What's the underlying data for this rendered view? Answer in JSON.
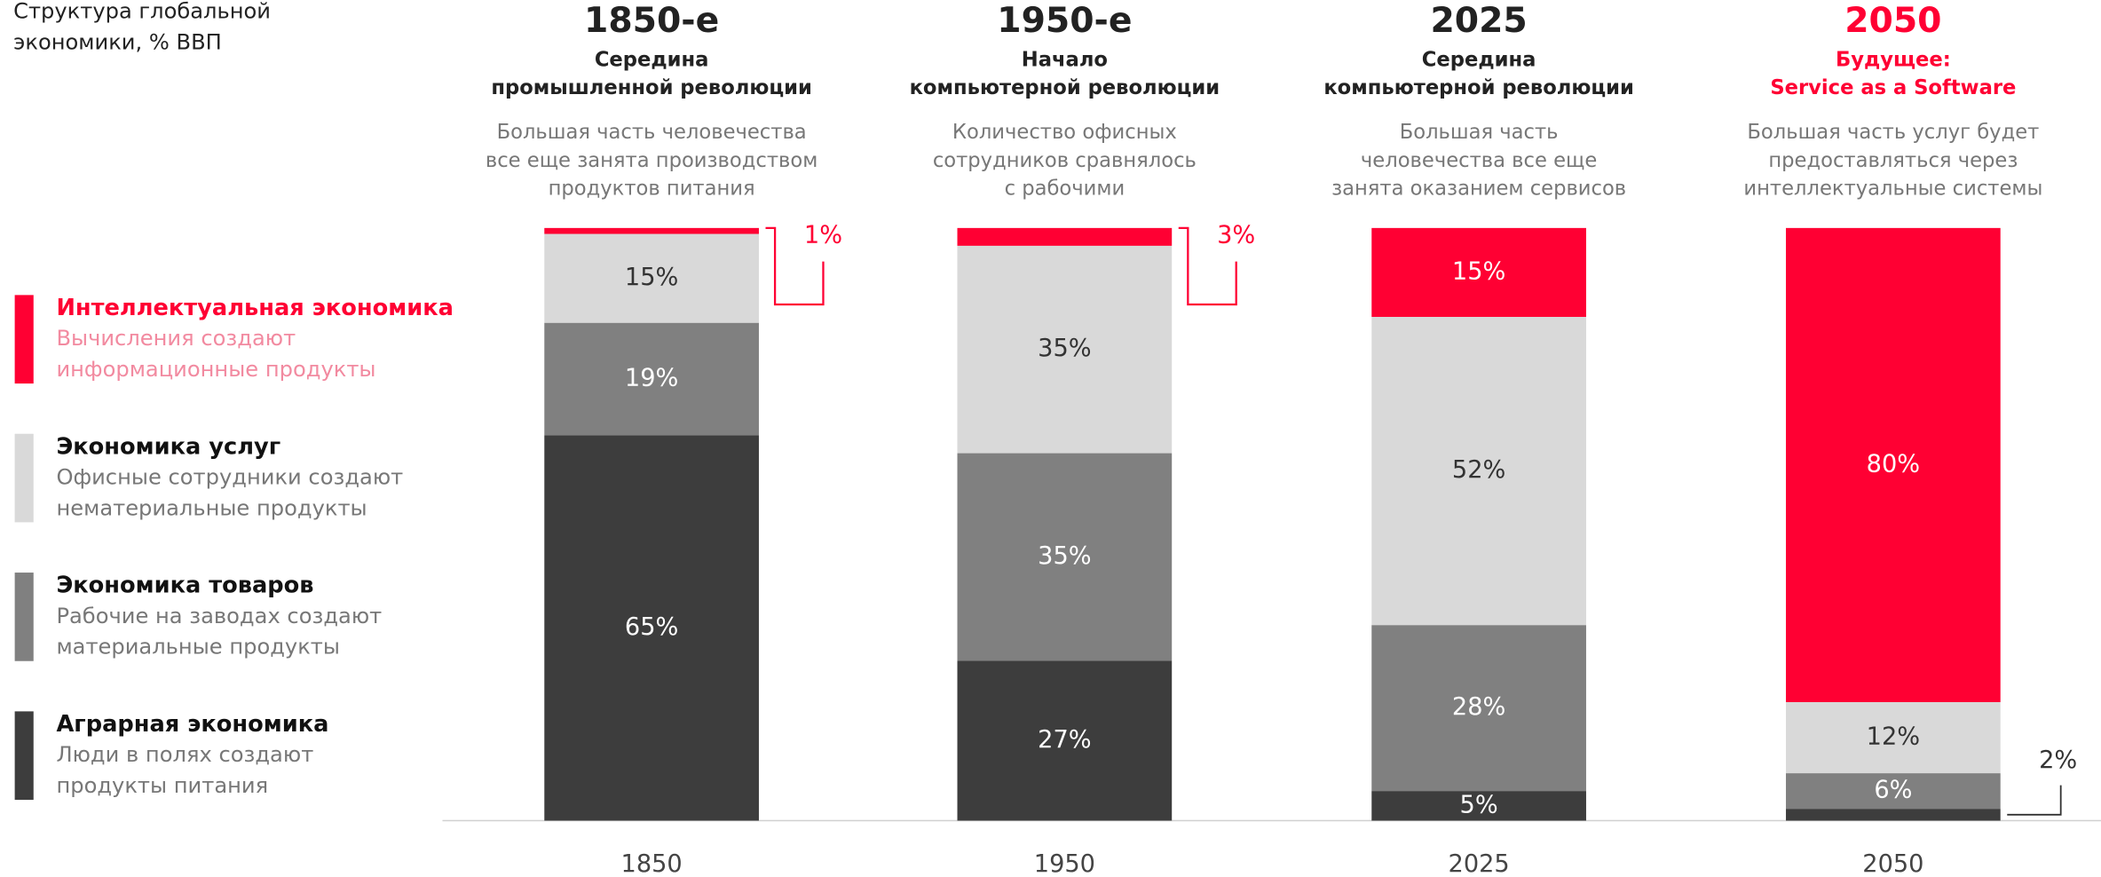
{
  "chart_data": {
    "type": "bar",
    "stacked": true,
    "title": [
      "Структура глобальной",
      "экономики, % ВВП"
    ],
    "categories": [
      "1850",
      "1950",
      "2025",
      "2050"
    ],
    "headers": [
      {
        "period": "1850-е",
        "color": "#222222",
        "subtitle": [
          "Середина",
          "промышленной революции"
        ],
        "description": [
          "Большая часть человечества",
          "все еще занята производством",
          "продуктов питания"
        ]
      },
      {
        "period": "1950-е",
        "color": "#222222",
        "subtitle": [
          "Начало",
          "компьютерной революции"
        ],
        "description": [
          "Количество офисных",
          "сотрудников сравнялось",
          "с рабочими"
        ]
      },
      {
        "period": "2025",
        "color": "#222222",
        "subtitle": [
          "Середина",
          "компьютерной революции"
        ],
        "description": [
          "Большая часть",
          "человечества все еще",
          "занята оказанием сервисов"
        ]
      },
      {
        "period": "2050",
        "color": "#ff0033",
        "subtitle": [
          "Будущее:",
          "Service as a Software"
        ],
        "description": [
          "Большая часть услуг будет",
          "предоставляться через",
          "интеллектуальные системы"
        ]
      }
    ],
    "series": [
      {
        "name": "Аграрная экономика",
        "description": [
          "Люди в полях создают",
          "продукты питания"
        ],
        "color": "#3d3d3d",
        "label_color": "#ffffff",
        "values": [
          65,
          27,
          5,
          2
        ],
        "value_labels": [
          "65%",
          "27%",
          "5%",
          "2%"
        ]
      },
      {
        "name": "Экономика товаров",
        "description": [
          "Рабочие на заводах создают",
          "материальные продукты"
        ],
        "color": "#808080",
        "label_color": "#ffffff",
        "values": [
          19,
          35,
          28,
          6
        ],
        "value_labels": [
          "19%",
          "35%",
          "28%",
          "6%"
        ]
      },
      {
        "name": "Экономика услуг",
        "description": [
          "Офисные сотрудники создают",
          "нематериальные продукты"
        ],
        "color": "#d9d9d9",
        "label_color": "#333333",
        "values": [
          15,
          35,
          52,
          12
        ],
        "value_labels": [
          "15%",
          "35%",
          "52%",
          "12%"
        ]
      },
      {
        "name": "Интеллектуальная экономика",
        "description": [
          "Вычисления создают",
          "информационные продукты"
        ],
        "color": "#ff0033",
        "label_color": "#ffffff",
        "values": [
          1,
          3,
          15,
          80
        ],
        "value_labels": [
          "1%",
          "3%",
          "15%",
          "80%"
        ]
      }
    ],
    "ylim": [
      0,
      100
    ]
  }
}
